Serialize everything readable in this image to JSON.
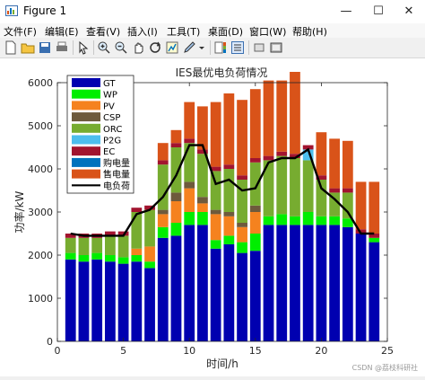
{
  "window": {
    "title": "Figure 1"
  },
  "window_controls": {
    "minimize": "—",
    "maximize": "☐",
    "close": "✕"
  },
  "menu": [
    "文件(F)",
    "编辑(E)",
    "查看(V)",
    "插入(I)",
    "工具(T)",
    "桌面(D)",
    "窗口(W)",
    "帮助(H)"
  ],
  "toolbar_icons": [
    "new-figure-icon",
    "open-file-icon",
    "save-icon",
    "print-icon",
    "pointer-icon",
    "zoom-in-icon",
    "zoom-out-icon",
    "pan-icon",
    "rotate-icon",
    "data-cursor-icon",
    "brush-icon",
    "insert-colorbar-icon",
    "insert-legend-icon",
    "hide-plot-tools-icon",
    "show-plot-tools-icon"
  ],
  "watermark": "CSDN @荔枝科研社",
  "chart_data": {
    "type": "bar",
    "stacked": true,
    "title": "IES最优电负荷情况",
    "xlabel": "时间/h",
    "ylabel": "功率/kW",
    "xlim": [
      0,
      25
    ],
    "ylim": [
      0,
      6000
    ],
    "xticks": [
      0,
      5,
      10,
      15,
      20,
      25
    ],
    "yticks": [
      0,
      1000,
      2000,
      3000,
      4000,
      5000,
      6000
    ],
    "grid": false,
    "legend_position": "top-left",
    "x": [
      1,
      2,
      3,
      4,
      5,
      6,
      7,
      8,
      9,
      10,
      11,
      12,
      13,
      14,
      15,
      16,
      17,
      18,
      19,
      20,
      21,
      22,
      23,
      24
    ],
    "series": [
      {
        "name": "GT",
        "color": "#0000b0",
        "values": [
          1900,
          1850,
          1900,
          1850,
          1800,
          1850,
          1700,
          2400,
          2450,
          2700,
          2700,
          2150,
          2250,
          2050,
          2100,
          2700,
          2700,
          2700,
          2700,
          2700,
          2700,
          2650,
          2500,
          2300
        ]
      },
      {
        "name": "WP",
        "color": "#00ee00",
        "values": [
          150,
          150,
          150,
          150,
          150,
          150,
          150,
          250,
          300,
          300,
          300,
          200,
          200,
          250,
          400,
          200,
          250,
          200,
          300,
          200,
          200,
          200,
          0,
          100
        ]
      },
      {
        "name": "PV",
        "color": "#f5821f",
        "values": [
          0,
          0,
          0,
          0,
          0,
          150,
          350,
          300,
          500,
          550,
          200,
          600,
          450,
          350,
          500,
          0,
          0,
          0,
          0,
          0,
          0,
          0,
          0,
          0
        ]
      },
      {
        "name": "CSP",
        "color": "#6e5a3c",
        "values": [
          0,
          0,
          0,
          0,
          0,
          0,
          0,
          100,
          200,
          150,
          150,
          100,
          100,
          100,
          150,
          0,
          0,
          0,
          0,
          0,
          0,
          0,
          0,
          0
        ]
      },
      {
        "name": "ORC",
        "color": "#77ac30",
        "values": [
          350,
          400,
          350,
          450,
          500,
          850,
          850,
          1050,
          1050,
          900,
          1000,
          900,
          1000,
          1000,
          1000,
          1300,
          1350,
          1350,
          1200,
          850,
          550,
          600,
          0,
          0
        ]
      },
      {
        "name": "P2G",
        "color": "#4dbeee",
        "values": [
          0,
          0,
          0,
          0,
          0,
          0,
          0,
          0,
          0,
          0,
          0,
          0,
          0,
          0,
          0,
          0,
          0,
          0,
          250,
          0,
          0,
          0,
          0,
          0
        ]
      },
      {
        "name": "EC",
        "color": "#a2142f",
        "values": [
          100,
          100,
          100,
          100,
          100,
          100,
          100,
          100,
          100,
          100,
          100,
          100,
          100,
          100,
          100,
          100,
          100,
          100,
          100,
          100,
          100,
          100,
          100,
          100
        ]
      },
      {
        "name": "购电量",
        "color": "#0072bd",
        "values": [
          0,
          0,
          0,
          0,
          0,
          0,
          0,
          0,
          0,
          0,
          0,
          0,
          0,
          0,
          0,
          0,
          0,
          0,
          0,
          0,
          0,
          0,
          0,
          0
        ]
      },
      {
        "name": "售电量",
        "color": "#d95319",
        "values": [
          0,
          0,
          0,
          0,
          0,
          0,
          0,
          400,
          300,
          850,
          1000,
          1500,
          1650,
          1750,
          1600,
          1750,
          1650,
          1900,
          0,
          1000,
          1150,
          1100,
          1100,
          1200
        ]
      }
    ],
    "line": {
      "name": "电负荷",
      "color": "#000000",
      "values": [
        2500,
        2450,
        2450,
        2450,
        2450,
        2950,
        3050,
        3350,
        3850,
        4550,
        4550,
        3650,
        3750,
        3500,
        3550,
        4150,
        4250,
        4250,
        4450,
        3550,
        3300,
        3000,
        2500,
        2500
      ]
    }
  }
}
